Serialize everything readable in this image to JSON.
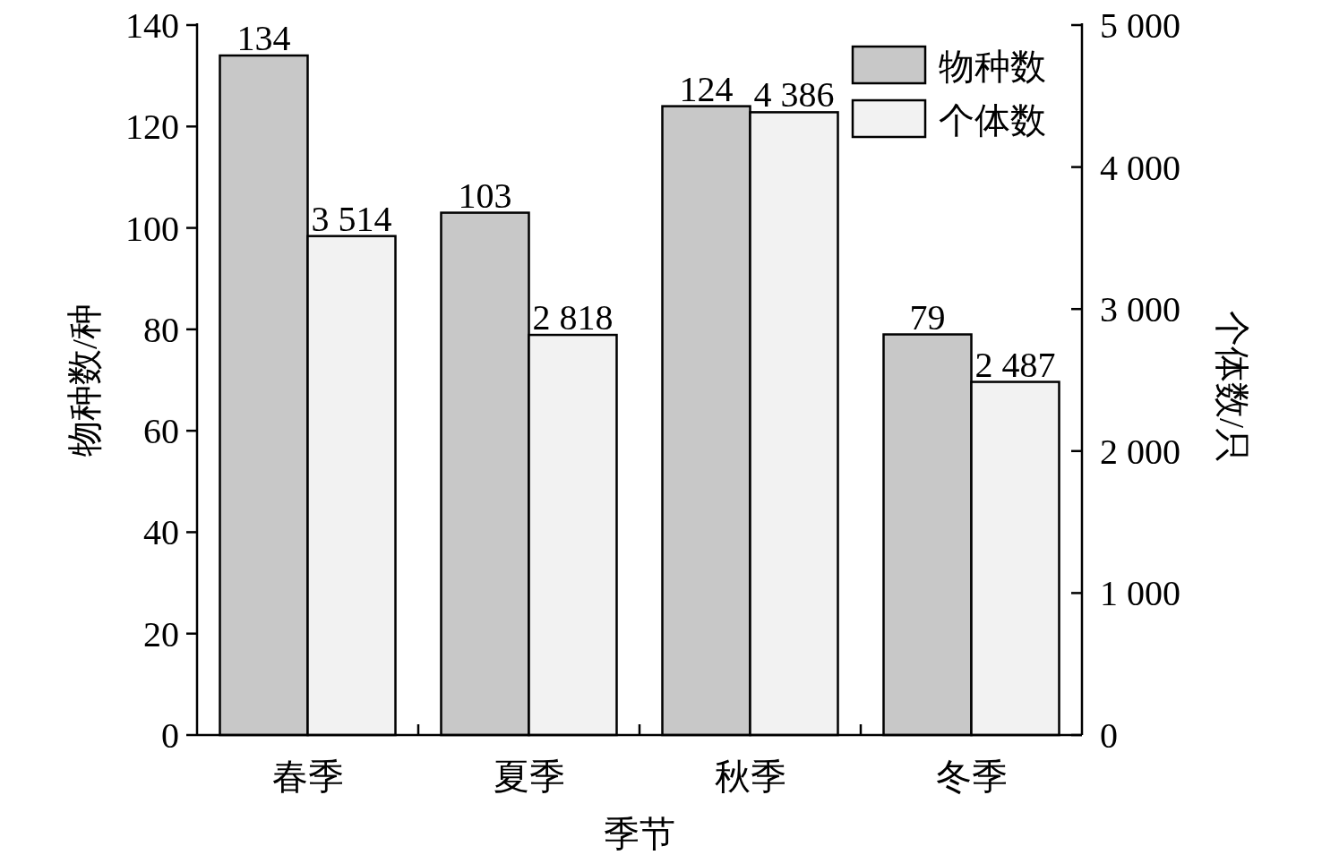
{
  "chart_data": {
    "type": "bar",
    "xlabel": "季节",
    "ylabel": "物种数/种",
    "y2label": "个体数/只",
    "categories": [
      "春季",
      "夏季",
      "秋季",
      "冬季"
    ],
    "series": [
      {
        "name": "物种数",
        "color": "#c8c8c8",
        "values": [
          134,
          103,
          124,
          79
        ],
        "value_labels": [
          "134",
          "103",
          "124",
          "79"
        ]
      },
      {
        "name": "个体数",
        "color": "#f2f2f2",
        "values": [
          3514,
          2818,
          4386,
          2487
        ],
        "value_labels": [
          "3 514",
          "2 818",
          "4 386",
          "2 487"
        ],
        "axis": "y2"
      }
    ],
    "ylim": [
      0,
      140
    ],
    "yticks": [
      0,
      20,
      40,
      60,
      80,
      100,
      120,
      140
    ],
    "y2lim": [
      0,
      5000
    ],
    "y2ticks": [
      0,
      {
        "value": 1000,
        "label": "1 000"
      },
      {
        "value": 2000,
        "label": "2 000"
      },
      {
        "value": 3000,
        "label": "3 000"
      },
      {
        "value": 4000,
        "label": "4 000"
      },
      {
        "value": 5000,
        "label": "5 000"
      }
    ],
    "legend": "top right",
    "grid": false
  }
}
